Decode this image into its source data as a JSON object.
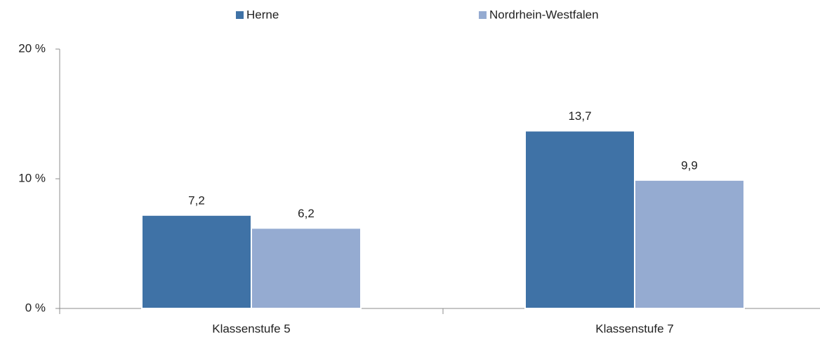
{
  "chart_data": {
    "type": "bar",
    "categories": [
      "Klassenstufe 5",
      "Klassenstufe 7"
    ],
    "series": [
      {
        "name": "Herne",
        "color": "#3f72a6",
        "values": [
          7.2,
          13.7
        ],
        "value_labels": [
          "7,2",
          "13,7"
        ]
      },
      {
        "name": "Nordrhein-Westfalen",
        "color": "#95abd1",
        "values": [
          6.2,
          9.9
        ],
        "value_labels": [
          "6,2",
          "9,9"
        ]
      }
    ],
    "ylim": [
      0,
      20
    ],
    "yticks": [
      {
        "value": 0,
        "label": "0 %"
      },
      {
        "value": 10,
        "label": "10 %"
      },
      {
        "value": 20,
        "label": "20 %"
      }
    ],
    "legend": "top"
  }
}
